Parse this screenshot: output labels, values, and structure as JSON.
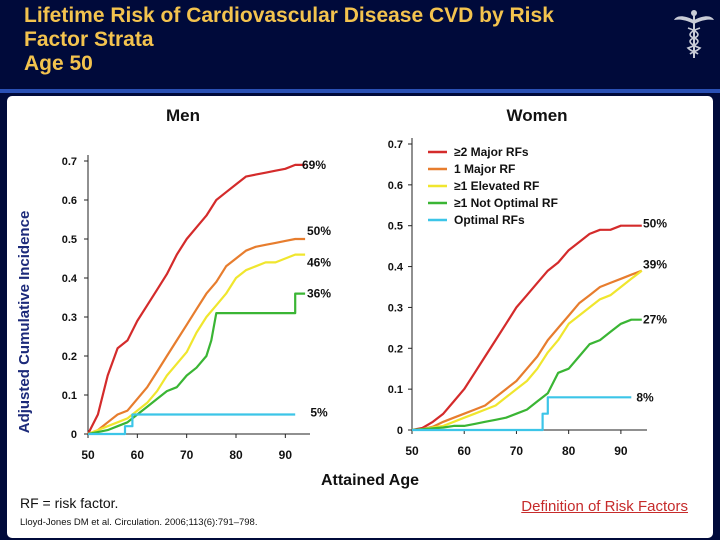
{
  "title": {
    "line1": "Lifetime Risk of Cardiovascular Disease CVD by Risk",
    "line2": "Factor Strata",
    "line3": "Age 50"
  },
  "logo_icon": "caduceus-icon",
  "colors": {
    "background": "#000a3a",
    "title": "#f3c34e",
    "rule": "#2a50b4",
    "major2": "#d42b2b",
    "major1": "#e77d2e",
    "elevated": "#f0e62e",
    "notOptimal": "#3ab534",
    "optimal": "#3cc5e8",
    "link": "#c62b2b"
  },
  "chart_data": [
    {
      "type": "line",
      "title": "Men",
      "xlabel": "Attained Age",
      "ylabel": "Adjusted Cumulative Incidence",
      "xlim": [
        50,
        95
      ],
      "ylim": [
        0,
        0.7
      ],
      "xticks": [
        "50",
        "60",
        "70",
        "80",
        "90"
      ],
      "yticks": [
        "0",
        "0.1",
        "0.2",
        "0.3",
        "0.4",
        "0.5",
        "0.6",
        "0.7"
      ],
      "series": [
        {
          "name": "≥2 Major RFs",
          "color": "major2",
          "end_label": "69%",
          "x": [
            50,
            52,
            54,
            56,
            58,
            60,
            62,
            64,
            66,
            68,
            70,
            72,
            74,
            76,
            78,
            80,
            82,
            84,
            86,
            88,
            90,
            92,
            94
          ],
          "y": [
            0,
            0.05,
            0.15,
            0.22,
            0.24,
            0.29,
            0.33,
            0.37,
            0.41,
            0.46,
            0.5,
            0.53,
            0.56,
            0.6,
            0.62,
            0.64,
            0.66,
            0.665,
            0.67,
            0.675,
            0.68,
            0.69,
            0.69
          ]
        },
        {
          "name": "1 Major RF",
          "color": "major1",
          "end_label": "50%",
          "x": [
            50,
            52,
            54,
            56,
            58,
            60,
            62,
            64,
            66,
            68,
            70,
            72,
            74,
            76,
            78,
            80,
            82,
            84,
            86,
            88,
            90,
            92,
            94
          ],
          "y": [
            0,
            0.01,
            0.03,
            0.05,
            0.06,
            0.09,
            0.12,
            0.16,
            0.2,
            0.24,
            0.28,
            0.32,
            0.36,
            0.39,
            0.43,
            0.45,
            0.47,
            0.48,
            0.485,
            0.49,
            0.495,
            0.5,
            0.5
          ]
        },
        {
          "name": "≥1 Elevated RF",
          "color": "elevated",
          "end_label": "46%",
          "x": [
            50,
            52,
            54,
            56,
            58,
            60,
            62,
            64,
            66,
            68,
            70,
            72,
            74,
            76,
            78,
            80,
            82,
            84,
            86,
            88,
            90,
            92,
            94
          ],
          "y": [
            0,
            0.01,
            0.02,
            0.03,
            0.04,
            0.06,
            0.08,
            0.11,
            0.15,
            0.18,
            0.21,
            0.26,
            0.3,
            0.33,
            0.36,
            0.4,
            0.42,
            0.43,
            0.44,
            0.44,
            0.45,
            0.46,
            0.46
          ]
        },
        {
          "name": "≥1 Not Optimal RF",
          "color": "notOptimal",
          "end_label": "36%",
          "x": [
            50,
            52,
            54,
            56,
            58,
            60,
            62,
            64,
            66,
            68,
            70,
            72,
            74,
            75,
            76,
            78,
            80,
            82,
            84,
            86,
            88,
            90,
            92,
            92.01,
            94
          ],
          "y": [
            0,
            0.005,
            0.01,
            0.02,
            0.03,
            0.05,
            0.07,
            0.09,
            0.11,
            0.12,
            0.15,
            0.17,
            0.2,
            0.24,
            0.31,
            0.31,
            0.31,
            0.31,
            0.31,
            0.31,
            0.31,
            0.31,
            0.31,
            0.36,
            0.36
          ]
        },
        {
          "name": "Optimal RFs",
          "color": "optimal",
          "end_label": "5%",
          "x": [
            50,
            57.5,
            57.5,
            59,
            59,
            92
          ],
          "y": [
            0,
            0,
            0.02,
            0.02,
            0.05,
            0.05
          ]
        }
      ]
    },
    {
      "type": "line",
      "title": "Women",
      "xlabel": "Attained Age",
      "ylabel": "Adjusted Cumulative Incidence",
      "xlim": [
        50,
        95
      ],
      "ylim": [
        0,
        0.7
      ],
      "xticks": [
        "50",
        "60",
        "70",
        "80",
        "90"
      ],
      "yticks": [
        "0",
        "0.1",
        "0.2",
        "0.3",
        "0.4",
        "0.5",
        "0.6",
        "0.7"
      ],
      "series": [
        {
          "name": "≥2 Major RFs",
          "color": "major2",
          "end_label": "50%",
          "x": [
            50,
            52,
            54,
            56,
            58,
            60,
            62,
            64,
            66,
            68,
            70,
            72,
            74,
            76,
            78,
            80,
            82,
            84,
            86,
            88,
            90,
            92,
            94
          ],
          "y": [
            0,
            0.005,
            0.02,
            0.04,
            0.07,
            0.1,
            0.14,
            0.18,
            0.22,
            0.26,
            0.3,
            0.33,
            0.36,
            0.39,
            0.41,
            0.44,
            0.46,
            0.48,
            0.49,
            0.49,
            0.5,
            0.5,
            0.5
          ]
        },
        {
          "name": "1 Major RF",
          "color": "major1",
          "end_label": "39%",
          "x": [
            50,
            52,
            54,
            56,
            58,
            60,
            62,
            64,
            66,
            68,
            70,
            72,
            74,
            76,
            78,
            80,
            82,
            84,
            86,
            88,
            90,
            92,
            94
          ],
          "y": [
            0,
            0.002,
            0.008,
            0.02,
            0.03,
            0.04,
            0.05,
            0.06,
            0.08,
            0.1,
            0.12,
            0.15,
            0.18,
            0.22,
            0.25,
            0.28,
            0.31,
            0.33,
            0.35,
            0.36,
            0.37,
            0.38,
            0.39
          ]
        },
        {
          "name": "≥1 Elevated RF",
          "color": "elevated",
          "end_label": "",
          "x": [
            50,
            52,
            54,
            56,
            58,
            60,
            62,
            64,
            66,
            68,
            70,
            72,
            74,
            76,
            78,
            80,
            82,
            84,
            86,
            88,
            90,
            92,
            94
          ],
          "y": [
            0,
            0.002,
            0.006,
            0.01,
            0.02,
            0.03,
            0.04,
            0.05,
            0.06,
            0.08,
            0.1,
            0.12,
            0.15,
            0.19,
            0.22,
            0.26,
            0.28,
            0.3,
            0.32,
            0.33,
            0.35,
            0.37,
            0.39
          ]
        },
        {
          "name": "≥1 Not Optimal RF",
          "color": "notOptimal",
          "end_label": "27%",
          "x": [
            50,
            52,
            54,
            56,
            58,
            60,
            62,
            64,
            66,
            68,
            70,
            72,
            74,
            76,
            78,
            80,
            82,
            84,
            86,
            88,
            90,
            92,
            94
          ],
          "y": [
            0,
            0.002,
            0.004,
            0.006,
            0.01,
            0.01,
            0.015,
            0.02,
            0.025,
            0.03,
            0.04,
            0.05,
            0.07,
            0.09,
            0.14,
            0.15,
            0.18,
            0.21,
            0.22,
            0.24,
            0.26,
            0.27,
            0.27
          ]
        },
        {
          "name": "Optimal RFs",
          "color": "optimal",
          "end_label": "8%",
          "x": [
            50,
            75,
            75,
            76,
            76,
            92
          ],
          "y": [
            0,
            0,
            0.04,
            0.04,
            0.08,
            0.08
          ]
        }
      ]
    }
  ],
  "legend": [
    {
      "label": "≥2 Major RFs",
      "color": "major2"
    },
    {
      "label": "1 Major RF",
      "color": "major1"
    },
    {
      "label": "≥1 Elevated RF",
      "color": "elevated"
    },
    {
      "label": "≥1 Not Optimal RF",
      "color": "notOptimal"
    },
    {
      "label": "Optimal RFs",
      "color": "optimal"
    }
  ],
  "footnote": {
    "rf": "RF = risk factor.",
    "citation": "Lloyd-Jones DM et al. Circulation. 2006;113(6):791–798."
  },
  "link_text": "Definition of Risk Factors"
}
